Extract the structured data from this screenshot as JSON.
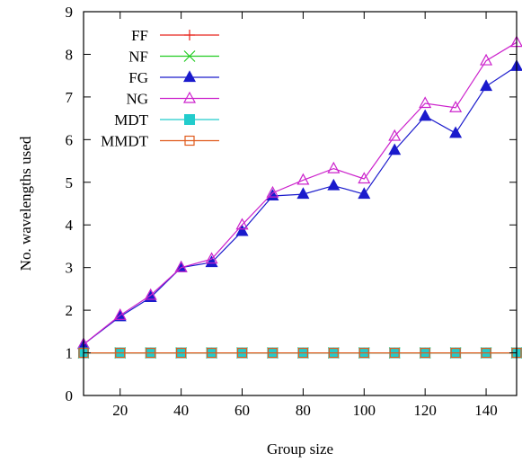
{
  "chart_data": {
    "type": "line",
    "title": "",
    "xlabel": "Group size",
    "ylabel": "No. wavelengths used",
    "xlim": [
      8,
      150
    ],
    "ylim": [
      0,
      9
    ],
    "xticks": [
      20,
      40,
      60,
      80,
      100,
      120,
      140
    ],
    "yticks": [
      0,
      1,
      2,
      3,
      4,
      5,
      6,
      7,
      8,
      9
    ],
    "grid": false,
    "legend_position": "top-left",
    "x": [
      8,
      20,
      30,
      40,
      50,
      60,
      70,
      80,
      90,
      100,
      110,
      120,
      130,
      140,
      150
    ],
    "series": [
      {
        "name": "FF",
        "color": "#e8251c",
        "marker": "plus",
        "values": [
          1,
          1,
          1,
          1,
          1,
          1,
          1,
          1,
          1,
          1,
          1,
          1,
          1,
          1,
          1
        ]
      },
      {
        "name": "NF",
        "color": "#22cc22",
        "marker": "cross",
        "values": [
          1,
          1,
          1,
          1,
          1,
          1,
          1,
          1,
          1,
          1,
          1,
          1,
          1,
          1,
          1
        ]
      },
      {
        "name": "FG",
        "color": "#1a1acc",
        "marker": "filled-triangle",
        "values": [
          1.2,
          1.85,
          2.3,
          3.0,
          3.12,
          3.85,
          4.68,
          4.72,
          4.92,
          4.72,
          5.75,
          6.55,
          6.15,
          7.25,
          7.72
        ]
      },
      {
        "name": "NG",
        "color": "#cc22cc",
        "marker": "open-triangle",
        "values": [
          1.2,
          1.88,
          2.35,
          3.0,
          3.2,
          4.0,
          4.75,
          5.05,
          5.32,
          5.08,
          6.08,
          6.85,
          6.75,
          7.85,
          8.28
        ]
      },
      {
        "name": "MDT",
        "color": "#22cccc",
        "marker": "filled-square",
        "values": [
          1,
          1,
          1,
          1,
          1,
          1,
          1,
          1,
          1,
          1,
          1,
          1,
          1,
          1,
          1
        ]
      },
      {
        "name": "MMDT",
        "color": "#e05a1c",
        "marker": "open-square",
        "values": [
          1,
          1,
          1,
          1,
          1,
          1,
          1,
          1,
          1,
          1,
          1,
          1,
          1,
          1,
          1
        ]
      }
    ]
  }
}
